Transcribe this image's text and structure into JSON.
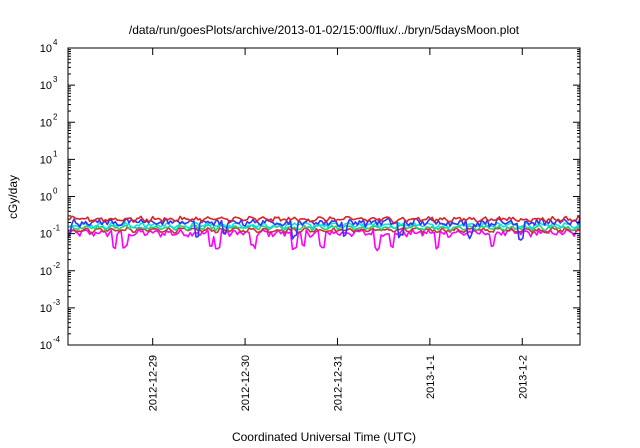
{
  "chart_data": {
    "type": "line",
    "title": "/data/run/goesPlots/archive/2013-01-02/15:00/flux/../bryn/5daysMoon.plot",
    "xlabel": "Coordinated Universal Time (UTC)",
    "ylabel": "cGy/day",
    "y_scale": "log",
    "ylim": [
      0.0001,
      10000
    ],
    "xlim": [
      "2012-12-28T02:00",
      "2013-01-02T15:00"
    ],
    "grid": false,
    "y_ticks": [
      {
        "base": "10",
        "exp": "-4",
        "value": 0.0001
      },
      {
        "base": "10",
        "exp": "-3",
        "value": 0.001
      },
      {
        "base": "10",
        "exp": "-2",
        "value": 0.01
      },
      {
        "base": "10",
        "exp": "-1",
        "value": 0.1
      },
      {
        "base": "10",
        "exp": "0",
        "value": 1
      },
      {
        "base": "10",
        "exp": "1",
        "value": 10
      },
      {
        "base": "10",
        "exp": "2",
        "value": 100
      },
      {
        "base": "10",
        "exp": "3",
        "value": 1000
      },
      {
        "base": "10",
        "exp": "4",
        "value": 10000
      }
    ],
    "x_ticks": [
      {
        "label": "2012-12-29",
        "value": "2012-12-29T00:00"
      },
      {
        "label": "2012-12-30",
        "value": "2012-12-30T00:00"
      },
      {
        "label": "2012-12-31",
        "value": "2012-12-31T00:00"
      },
      {
        "label": "2013-1-1",
        "value": "2013-01-01T00:00"
      },
      {
        "label": "2013-1-2",
        "value": "2013-01-02T00:00"
      }
    ],
    "series": [
      {
        "color": "#ff00ff",
        "level": 0.105,
        "spread": 0.18,
        "dips": [
          0.5,
          0.62,
          1.55,
          1.62,
          2.0,
          2.45,
          2.55,
          2.75,
          3.35,
          3.5,
          4.0,
          4.6
        ]
      },
      {
        "color": "#c0392b",
        "level": 0.125,
        "spread": 0.1,
        "dips": []
      },
      {
        "color": "#2ecc71",
        "level": 0.145,
        "spread": 0.1,
        "dips": []
      },
      {
        "color": "#00e5e5",
        "level": 0.17,
        "spread": 0.12,
        "dips": []
      },
      {
        "color": "#3333ff",
        "level": 0.205,
        "spread": 0.2,
        "dips": [
          0.0,
          1.4,
          1.7,
          2.45,
          3.0,
          3.6,
          4.35,
          4.9
        ]
      },
      {
        "color": "#dd2222",
        "level": 0.245,
        "spread": 0.12,
        "dips": []
      }
    ]
  }
}
